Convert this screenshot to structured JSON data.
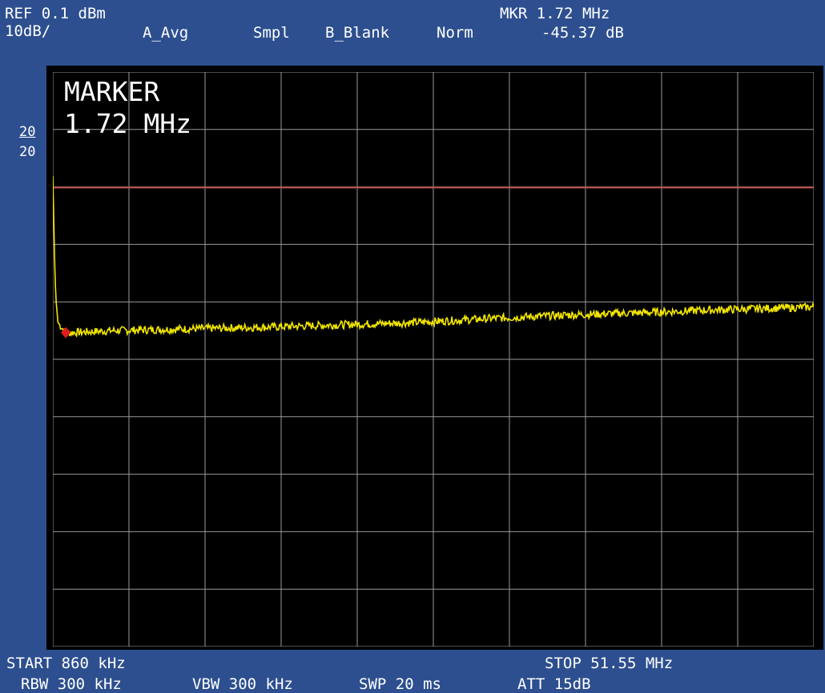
{
  "header": {
    "ref": "REF 0.1 dBm",
    "scale": "10dB/",
    "trace_a": "A_Avg",
    "detector": "Smpl",
    "trace_b": "B_Blank",
    "mode": "Norm",
    "mkr_freq": "MKR 1.72 MHz",
    "mkr_level": "-45.37 dB"
  },
  "left_scale": {
    "top": "20",
    "bottom": "20"
  },
  "marker_box": {
    "label": "MARKER",
    "value": "1.72 MHz"
  },
  "footer": {
    "start": "START 860 kHz",
    "stop": "STOP 51.55 MHz",
    "rbw": "RBW 300 kHz",
    "vbw": "VBW 300 kHz",
    "swp": "SWP 20 ms",
    "att": "ATT 15dB"
  },
  "colors": {
    "trace": "#f2e600",
    "grid": "#9a9a9a",
    "reference_line": "#c0504d",
    "marker": "#e11c1c",
    "frame": "#2d4f8f"
  },
  "chart_data": {
    "type": "line",
    "x_unit": "MHz",
    "y_unit": "dBm",
    "xlim": [
      0.86,
      51.55
    ],
    "ylim": [
      -99.9,
      0.1
    ],
    "grid": true,
    "reference_line_dbm": -20,
    "marker": {
      "x": 1.72,
      "y": -45.27
    },
    "series": [
      {
        "x": [
          0.86,
          0.95,
          1.05,
          1.2,
          1.72,
          5,
          10,
          15,
          20,
          25,
          30,
          35,
          40,
          45,
          51.55
        ],
        "y": [
          -18,
          -30,
          -39,
          -43.5,
          -45.3,
          -44.9,
          -44.6,
          -44.3,
          -43.9,
          -43.5,
          -42.8,
          -42.2,
          -41.8,
          -41.3,
          -40.8
        ]
      }
    ]
  }
}
